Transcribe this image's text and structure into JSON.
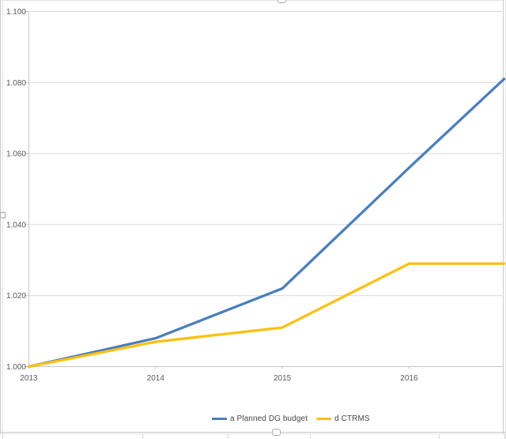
{
  "chart_data": {
    "type": "line",
    "title": "",
    "categories": [
      2013,
      2014,
      2015,
      2016
    ],
    "series": [
      {
        "name": "a Planned DG budget",
        "color": "#4a7ebb",
        "values": [
          1.0,
          1.008,
          1.022,
          1.056
        ],
        "right_edge_value": 1.081
      },
      {
        "name": "d CTRMS",
        "color": "#fdc010",
        "values": [
          1.0,
          1.007,
          1.011,
          1.029
        ],
        "right_edge_value": 1.029
      }
    ],
    "x_axis": {
      "labels": [
        "2013",
        "2014",
        "2015",
        "2016"
      ],
      "min": 2013,
      "visible_max": 2016.75
    },
    "y_axis": {
      "min": 1.0,
      "max": 1.1,
      "step": 0.02,
      "tick_labels": [
        "1.100",
        "1.080",
        "1.060",
        "1.040",
        "1.020",
        "1.000"
      ]
    },
    "grid": true,
    "legend_position": "bottom",
    "plot_clipped_right": true
  },
  "colors": {
    "series_blue": "#4a7ebb",
    "series_yellow": "#fdc010",
    "gridline": "#d9d9d9",
    "axis": "#c6c6c6",
    "tick_label": "#595959",
    "frame": "#c9c9c9",
    "background": "#ffffff"
  }
}
